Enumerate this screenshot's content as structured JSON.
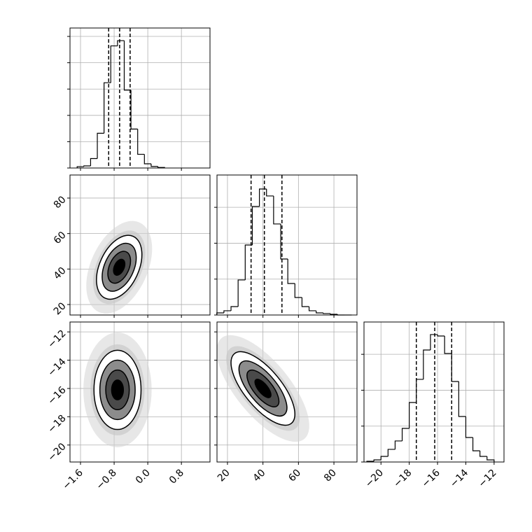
{
  "chart_data": {
    "type": "corner",
    "grid": true,
    "color": "#000000",
    "levels": [
      0.5,
      1,
      1.5,
      2
    ],
    "params": [
      {
        "lim": [
          -1.85,
          1.48
        ],
        "ticks": [
          {
            "value": -1.6,
            "label": "−1.6"
          },
          {
            "value": -0.8,
            "label": "−0.8"
          },
          {
            "value": 0,
            "label": "0.0"
          },
          {
            "value": 0.8,
            "label": "0.8"
          }
        ],
        "hist": {
          "bins": [
            -1.68,
            -1.52,
            -1.36,
            -1.2,
            -1.04,
            -0.88,
            -0.72,
            -0.56,
            -0.4,
            -0.24,
            -0.08,
            0.08,
            0.24,
            0.4
          ],
          "counts": [
            13,
            20,
            90,
            330,
            810,
            1160,
            1210,
            740,
            370,
            130,
            40,
            15,
            5
          ],
          "ylim": [
            0,
            1330
          ],
          "yticks": [
            0,
            250,
            500,
            750,
            1000,
            1250
          ],
          "quantiles": [
            -0.93,
            -0.67,
            -0.42
          ]
        }
      },
      {
        "lim": [
          14.1,
          93.0
        ],
        "ticks": [
          20,
          40,
          60,
          80
        ],
        "hist": {
          "bins": [
            14,
            18,
            22,
            26,
            30,
            34,
            38,
            42,
            46,
            50,
            54,
            58,
            62,
            66,
            70,
            74,
            78,
            82,
            86,
            90
          ],
          "counts": [
            29,
            59,
            117,
            488,
            975,
            1511,
            1755,
            1658,
            1268,
            780,
            439,
            244,
            117,
            59,
            29,
            20,
            10,
            0,
            0
          ],
          "ylim": [
            0,
            1950
          ],
          "yticks": [
            0,
            500,
            1000,
            1500
          ],
          "quantiles": [
            33.3,
            40.8,
            50.7
          ]
        }
      },
      {
        "lim": [
          -21.2,
          -11.3
        ],
        "ticks": [
          {
            "value": -20,
            "label": "−20"
          },
          {
            "value": -18,
            "label": "−18"
          },
          {
            "value": -16,
            "label": "−16"
          },
          {
            "value": -14,
            "label": "−14"
          },
          {
            "value": -12,
            "label": "−12"
          }
        ],
        "hist": {
          "bins": [
            -21,
            -20.5,
            -20,
            -19.5,
            -19,
            -18.5,
            -18,
            -17.5,
            -17,
            -16.5,
            -16,
            -15.5,
            -15,
            -14.5,
            -14,
            -13.5,
            -13,
            -12.5,
            -12
          ],
          "counts": [
            10,
            29,
            78,
            176,
            293,
            468,
            829,
            1151,
            1560,
            1775,
            1755,
            1511,
            1121,
            634,
            341,
            156,
            78,
            29
          ],
          "ylim": [
            0,
            1950
          ],
          "yticks": [
            0,
            500,
            1000,
            1500
          ],
          "quantiles": [
            -17.5,
            -16.2,
            -15.0
          ]
        }
      }
    ],
    "pairs": [
      {
        "x": 0,
        "y": 1,
        "center": [
          -0.68,
          41
        ],
        "sd": [
          0.27,
          9
        ],
        "corr": 0.4
      },
      {
        "x": 0,
        "y": 2,
        "center": [
          -0.72,
          -16.1
        ],
        "sd": [
          0.28,
          1.4
        ],
        "corr": 0.0
      },
      {
        "x": 1,
        "y": 2,
        "center": [
          40,
          -16.0
        ],
        "sd": [
          9,
          1.3
        ],
        "corr": -0.7
      }
    ]
  }
}
